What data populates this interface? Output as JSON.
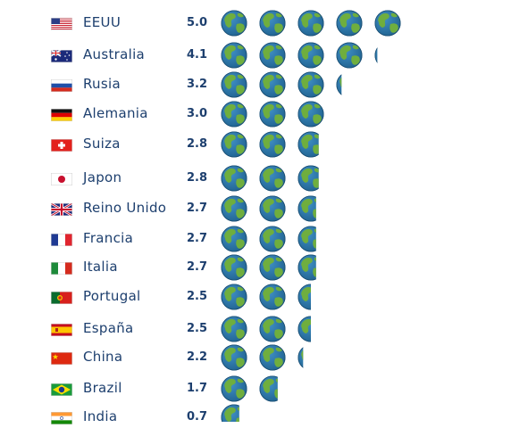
{
  "chart_data": {
    "type": "bar",
    "unit_icon": "globe-icon",
    "categories": [
      "EEUU",
      "Australia",
      "Rusia",
      "Alemania",
      "Suiza",
      "Japon",
      "Reino Unido",
      "Francia",
      "Italia",
      "Portugal",
      "España",
      "China",
      "Brazil",
      "India"
    ],
    "values": [
      5.0,
      4.1,
      3.2,
      3.0,
      2.8,
      2.8,
      2.7,
      2.7,
      2.7,
      2.5,
      2.5,
      2.2,
      1.7,
      0.7
    ],
    "value_labels": [
      "5.0",
      "4.1",
      "3.2",
      "3.0",
      "2.8",
      "2.8",
      "2.7",
      "2.7",
      "2.7",
      "2.5",
      "2.5",
      "2.2",
      "1.7",
      "0.7"
    ],
    "flags": [
      "us-flag-icon",
      "australia-flag-icon",
      "russia-flag-icon",
      "germany-flag-icon",
      "switzerland-flag-icon",
      "japan-flag-icon",
      "uk-flag-icon",
      "france-flag-icon",
      "italy-flag-icon",
      "portugal-flag-icon",
      "spain-flag-icon",
      "china-flag-icon",
      "brazil-flag-icon",
      "india-flag-icon"
    ],
    "colors": {
      "text": "#1d3f6e",
      "globe_ocean": "#1e5f8c",
      "globe_land": "#6fae3e"
    }
  }
}
